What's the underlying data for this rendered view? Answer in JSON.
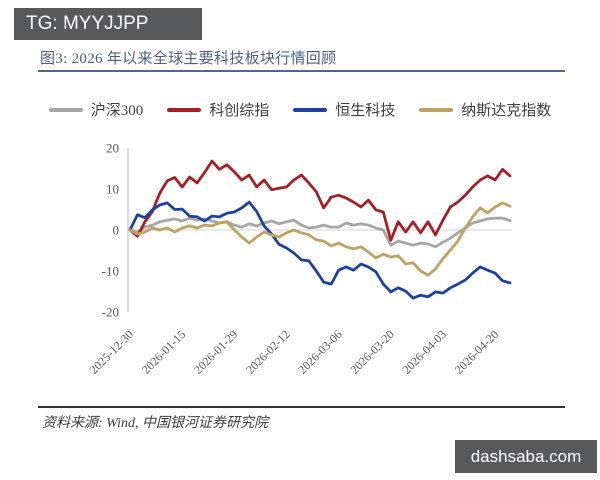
{
  "badge_top": "TG: MYYJJPP",
  "badge_bottom": "dashsaba.com",
  "figure": {
    "title": "图3: 2026 年以来全球主要科技板块行情回顾",
    "source": "资料来源: Wind, 中国银河证券研究院"
  },
  "colors": {
    "badge_background": "#58595b",
    "badge_text": "#ffffff",
    "title_text": "#4d6080",
    "title_underline": "#55648a",
    "bottom_rule": "#333333",
    "axis_line": "#c3c3c3",
    "zero_gridline": "#dcdcdc",
    "tick_text": "#595959"
  },
  "chart_data": {
    "type": "line",
    "title": "图3: 2026 年以来全球主要科技板块行情回顾",
    "xlabel": "",
    "ylabel": "",
    "ylim": [
      -20,
      20
    ],
    "yticks": [
      20,
      10,
      0,
      -10,
      -20
    ],
    "grid": "zero-line-only",
    "legend_position": "top",
    "x_tick_labels": [
      "2025-12-30",
      "2026-01-15",
      "2026-01-29",
      "2026-02-12",
      "2026-03-06",
      "2026-03-20",
      "2026-04-03",
      "2026-04-20"
    ],
    "x_tick_indices": [
      0,
      7,
      14,
      21,
      28,
      35,
      42,
      49
    ],
    "series": [
      {
        "name": "沪深300",
        "color": "#a6a6a6",
        "values": [
          0,
          -0.5,
          0.7,
          1.2,
          2.0,
          2.4,
          2.7,
          2.2,
          2.9,
          2.4,
          2.7,
          2.2,
          1.7,
          2.0,
          1.2,
          0.7,
          1.5,
          1.0,
          1.7,
          2.2,
          1.5,
          2.0,
          2.4,
          1.2,
          0.5,
          0.7,
          1.2,
          0.7,
          0.7,
          1.7,
          1.2,
          1.5,
          1.2,
          0.5,
          0.0,
          -3.7,
          -2.7,
          -3.2,
          -3.7,
          -3.2,
          -3.4,
          -4.1,
          -3.0,
          -2.0,
          -0.7,
          0.5,
          1.7,
          2.2,
          2.7,
          2.9,
          2.9,
          2.3
        ]
      },
      {
        "name": "科创综指",
        "color": "#a42024",
        "values": [
          0,
          -1.5,
          2.0,
          4.5,
          9.0,
          12.0,
          12.8,
          10.5,
          12.9,
          11.5,
          14.0,
          16.8,
          14.8,
          15.9,
          14.2,
          12.2,
          13.4,
          10.5,
          12.2,
          9.8,
          10.2,
          10.5,
          12.2,
          13.4,
          11.5,
          9.3,
          5.4,
          8.0,
          8.5,
          7.8,
          6.8,
          5.6,
          7.3,
          4.9,
          4.4,
          -2.5,
          2.0,
          -0.5,
          2.0,
          -0.7,
          2.0,
          -1.2,
          2.4,
          5.6,
          6.8,
          8.5,
          10.5,
          12.2,
          13.2,
          12.2,
          14.8,
          13.2
        ]
      },
      {
        "name": "恒生科技",
        "color": "#1c419e",
        "values": [
          0,
          3.7,
          3.0,
          4.9,
          6.1,
          6.6,
          5.0,
          5.1,
          3.4,
          3.2,
          2.2,
          3.4,
          3.2,
          4.1,
          4.4,
          5.4,
          6.8,
          4.5,
          1.0,
          -1.0,
          -3.5,
          -4.4,
          -5.6,
          -7.3,
          -7.5,
          -10.0,
          -12.7,
          -13.2,
          -9.8,
          -9.0,
          -9.8,
          -8.3,
          -9.0,
          -10.2,
          -13.2,
          -15.1,
          -14.1,
          -14.9,
          -16.6,
          -15.9,
          -16.3,
          -15.1,
          -15.4,
          -14.1,
          -13.2,
          -12.2,
          -10.5,
          -9.0,
          -9.8,
          -10.5,
          -12.4,
          -12.9
        ]
      },
      {
        "name": "纳斯达克指数",
        "color": "#bfa161",
        "values": [
          0,
          -1.0,
          -0.5,
          0.5,
          0.0,
          0.5,
          -0.5,
          0.5,
          1.0,
          0.5,
          1.2,
          1.0,
          1.7,
          2.0,
          0.0,
          -1.7,
          -3.2,
          -1.7,
          -0.5,
          -1.2,
          -1.7,
          -0.7,
          0.0,
          -0.7,
          -1.2,
          -2.4,
          -2.7,
          -3.9,
          -3.2,
          -4.1,
          -4.6,
          -4.1,
          -5.4,
          -6.8,
          -5.9,
          -6.6,
          -6.3,
          -8.3,
          -8.0,
          -10.0,
          -11.0,
          -9.5,
          -7.0,
          -4.9,
          -2.7,
          0.5,
          3.2,
          5.4,
          4.2,
          5.6,
          6.6,
          5.8
        ]
      }
    ]
  }
}
